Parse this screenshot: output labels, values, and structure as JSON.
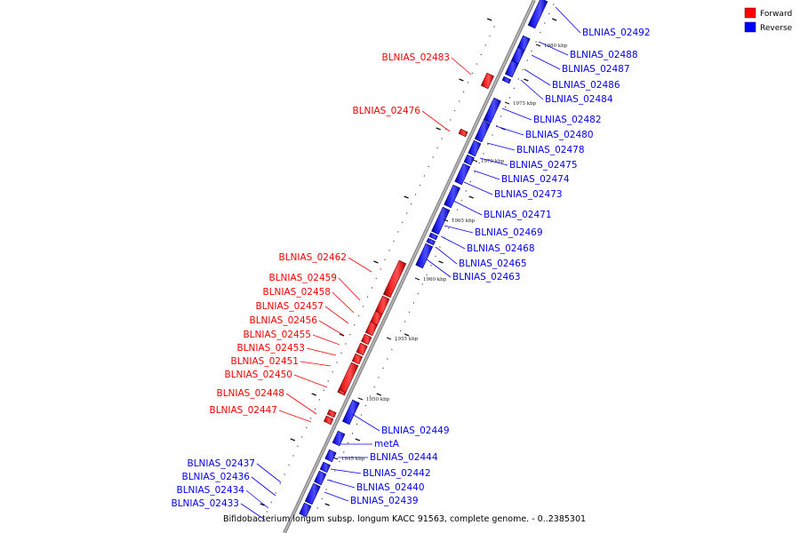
{
  "caption": "Bifidobacterium longum subsp. longum KACC 91563, complete genome. - 0..2385301",
  "legend": [
    {
      "label": "Forward",
      "color": "#ff0000"
    },
    {
      "label": "Reverse",
      "color": "#0000ff"
    }
  ],
  "ticks": [
    "1980 kbp",
    "1975 kbp",
    "1970 kbp",
    "1965 kbp",
    "1960 kbp",
    "1955 kbp",
    "1950 kbp",
    "1945 kbp"
  ],
  "forward_genes": [
    "BLNIAS_02483",
    "BLNIAS_02476",
    "BLNIAS_02462",
    "BLNIAS_02459",
    "BLNIAS_02458",
    "BLNIAS_02457",
    "BLNIAS_02456",
    "BLNIAS_02455",
    "BLNIAS_02453",
    "BLNIAS_02451",
    "BLNIAS_02450",
    "BLNIAS_02448",
    "BLNIAS_02447"
  ],
  "reverse_genes": [
    "BLNIAS_02492",
    "BLNIAS_02488",
    "BLNIAS_02487",
    "BLNIAS_02486",
    "BLNIAS_02484",
    "BLNIAS_02482",
    "BLNIAS_02480",
    "BLNIAS_02478",
    "BLNIAS_02475",
    "BLNIAS_02474",
    "BLNIAS_02473",
    "BLNIAS_02471",
    "BLNIAS_02469",
    "BLNIAS_02468",
    "BLNIAS_02465",
    "BLNIAS_02463",
    "BLNIAS_02449",
    "metA",
    "BLNIAS_02444",
    "BLNIAS_02442",
    "BLNIAS_02440",
    "BLNIAS_02439"
  ],
  "reverse_genes_left": [
    "BLNIAS_02437",
    "BLNIAS_02436",
    "BLNIAS_02434",
    "BLNIAS_02433"
  ]
}
